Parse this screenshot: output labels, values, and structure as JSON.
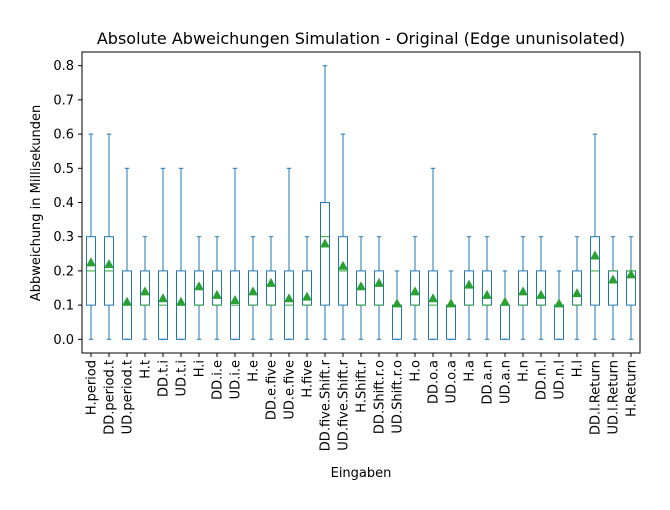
{
  "chart_data": {
    "type": "box",
    "title": "Absolute Abweichungen Simulation - Original (Edge ununisolated)",
    "xlabel": "Eingaben",
    "ylabel": "Abbweichung in Millisekunden",
    "ylim": [
      -0.04,
      0.84
    ],
    "yticks": [
      0.0,
      0.1,
      0.2,
      0.3,
      0.4,
      0.5,
      0.6,
      0.7,
      0.8
    ],
    "ytick_labels": [
      "0.0",
      "0.1",
      "0.2",
      "0.3",
      "0.4",
      "0.5",
      "0.6",
      "0.7",
      "0.8"
    ],
    "grid": false,
    "showmeans": true,
    "colors": {
      "box": "#1f77b4",
      "median": "#2ca02c",
      "mean": "#2ca02c"
    },
    "categories": [
      "H.period",
      "DD.period.t",
      "UD.period.t",
      "H.t",
      "DD.t.i",
      "UD.t.i",
      "H.i",
      "DD.i.e",
      "UD.i.e",
      "H.e",
      "DD.e.five",
      "UD.e.five",
      "H.five",
      "DD.five.Shift.r",
      "UD.five.Shift.r",
      "H.Shift.r",
      "DD.Shift.r.o",
      "UD.Shift.r.o",
      "H.o",
      "DD.o.a",
      "UD.o.a",
      "H.a",
      "DD.a.n",
      "UD.a.n",
      "H.n",
      "DD.n.l",
      "UD.n.l",
      "H.l",
      "DD.l.Return",
      "UD.l.Return",
      "H.Return"
    ],
    "boxes": [
      {
        "whislo": 0.0,
        "q1": 0.1,
        "med": 0.2,
        "q3": 0.3,
        "whishi": 0.6,
        "mean": 0.225
      },
      {
        "whislo": 0.0,
        "q1": 0.1,
        "med": 0.2,
        "q3": 0.3,
        "whishi": 0.6,
        "mean": 0.22
      },
      {
        "whislo": 0.0,
        "q1": 0.0,
        "med": 0.1,
        "q3": 0.2,
        "whishi": 0.5,
        "mean": 0.11
      },
      {
        "whislo": 0.0,
        "q1": 0.1,
        "med": 0.1,
        "q3": 0.2,
        "whishi": 0.3,
        "mean": 0.14
      },
      {
        "whislo": 0.0,
        "q1": 0.0,
        "med": 0.1,
        "q3": 0.2,
        "whishi": 0.5,
        "mean": 0.12
      },
      {
        "whislo": 0.0,
        "q1": 0.0,
        "med": 0.1,
        "q3": 0.2,
        "whishi": 0.5,
        "mean": 0.11
      },
      {
        "whislo": 0.0,
        "q1": 0.1,
        "med": 0.1,
        "q3": 0.2,
        "whishi": 0.3,
        "mean": 0.155
      },
      {
        "whislo": 0.0,
        "q1": 0.1,
        "med": 0.1,
        "q3": 0.2,
        "whishi": 0.3,
        "mean": 0.13
      },
      {
        "whislo": 0.0,
        "q1": 0.0,
        "med": 0.1,
        "q3": 0.2,
        "whishi": 0.5,
        "mean": 0.115
      },
      {
        "whislo": 0.0,
        "q1": 0.1,
        "med": 0.1,
        "q3": 0.2,
        "whishi": 0.3,
        "mean": 0.14
      },
      {
        "whislo": 0.0,
        "q1": 0.1,
        "med": 0.1,
        "q3": 0.2,
        "whishi": 0.3,
        "mean": 0.165
      },
      {
        "whislo": 0.0,
        "q1": 0.0,
        "med": 0.1,
        "q3": 0.2,
        "whishi": 0.5,
        "mean": 0.12
      },
      {
        "whislo": 0.0,
        "q1": 0.1,
        "med": 0.1,
        "q3": 0.2,
        "whishi": 0.3,
        "mean": 0.125
      },
      {
        "whislo": 0.0,
        "q1": 0.1,
        "med": 0.3,
        "q3": 0.4,
        "whishi": 0.8,
        "mean": 0.28
      },
      {
        "whislo": 0.0,
        "q1": 0.1,
        "med": 0.2,
        "q3": 0.3,
        "whishi": 0.6,
        "mean": 0.215
      },
      {
        "whislo": 0.0,
        "q1": 0.1,
        "med": 0.1,
        "q3": 0.2,
        "whishi": 0.3,
        "mean": 0.155
      },
      {
        "whislo": 0.0,
        "q1": 0.1,
        "med": 0.1,
        "q3": 0.2,
        "whishi": 0.3,
        "mean": 0.165
      },
      {
        "whislo": 0.0,
        "q1": 0.0,
        "med": 0.1,
        "q3": 0.1,
        "whishi": 0.2,
        "mean": 0.105
      },
      {
        "whislo": 0.0,
        "q1": 0.1,
        "med": 0.1,
        "q3": 0.2,
        "whishi": 0.3,
        "mean": 0.14
      },
      {
        "whislo": 0.0,
        "q1": 0.0,
        "med": 0.1,
        "q3": 0.2,
        "whishi": 0.5,
        "mean": 0.12
      },
      {
        "whislo": 0.0,
        "q1": 0.0,
        "med": 0.1,
        "q3": 0.1,
        "whishi": 0.2,
        "mean": 0.105
      },
      {
        "whislo": 0.0,
        "q1": 0.1,
        "med": 0.1,
        "q3": 0.2,
        "whishi": 0.3,
        "mean": 0.16
      },
      {
        "whislo": 0.0,
        "q1": 0.1,
        "med": 0.1,
        "q3": 0.2,
        "whishi": 0.3,
        "mean": 0.13
      },
      {
        "whislo": 0.0,
        "q1": 0.0,
        "med": 0.1,
        "q3": 0.1,
        "whishi": 0.2,
        "mean": 0.11
      },
      {
        "whislo": 0.0,
        "q1": 0.1,
        "med": 0.1,
        "q3": 0.2,
        "whishi": 0.3,
        "mean": 0.14
      },
      {
        "whislo": 0.0,
        "q1": 0.1,
        "med": 0.1,
        "q3": 0.2,
        "whishi": 0.3,
        "mean": 0.13
      },
      {
        "whislo": 0.0,
        "q1": 0.0,
        "med": 0.1,
        "q3": 0.1,
        "whishi": 0.2,
        "mean": 0.105
      },
      {
        "whislo": 0.0,
        "q1": 0.1,
        "med": 0.1,
        "q3": 0.2,
        "whishi": 0.3,
        "mean": 0.135
      },
      {
        "whislo": 0.0,
        "q1": 0.1,
        "med": 0.2,
        "q3": 0.3,
        "whishi": 0.6,
        "mean": 0.245
      },
      {
        "whislo": 0.0,
        "q1": 0.1,
        "med": 0.2,
        "q3": 0.2,
        "whishi": 0.3,
        "mean": 0.175
      },
      {
        "whislo": 0.0,
        "q1": 0.1,
        "med": 0.2,
        "q3": 0.2,
        "whishi": 0.3,
        "mean": 0.19
      }
    ]
  }
}
